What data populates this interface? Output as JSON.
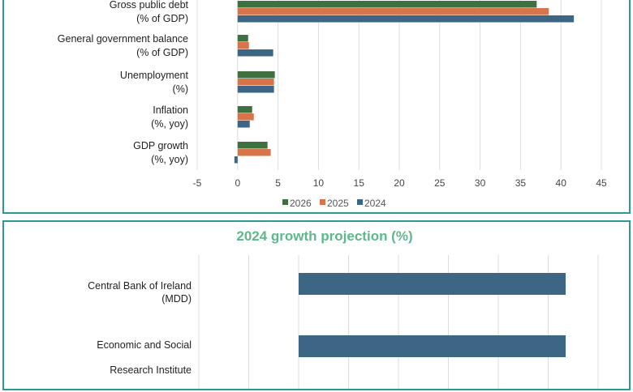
{
  "chart_data": [
    {
      "type": "bar",
      "orientation": "horizontal",
      "categories": [
        [
          "Gross public debt",
          "(% of GDP)"
        ],
        [
          "General government balance",
          "(% of GDP)"
        ],
        [
          "Unemployment",
          "(%)"
        ],
        [
          "Inflation",
          "(%, yoy)"
        ],
        [
          "GDP growth",
          "(%, yoy)"
        ]
      ],
      "series": [
        {
          "name": "2026",
          "color": "#3f7040",
          "values": [
            37.0,
            1.3,
            4.6,
            1.8,
            3.7
          ]
        },
        {
          "name": "2025",
          "color": "#d8744a",
          "values": [
            38.5,
            1.4,
            4.5,
            2.0,
            4.1
          ]
        },
        {
          "name": "2024",
          "color": "#3d6584",
          "values": [
            41.6,
            4.4,
            4.5,
            1.5,
            -0.4
          ]
        }
      ],
      "xlim": [
        -5,
        45
      ],
      "xticks": [
        "-5",
        "0",
        "5",
        "10",
        "15",
        "20",
        "25",
        "30",
        "35",
        "40",
        "45"
      ],
      "grid": true,
      "legend_placement": "bottom"
    },
    {
      "type": "bar",
      "orientation": "horizontal",
      "title": "2024 growth projection (%)",
      "categories": [
        [
          "Central Bank of Ireland",
          "(MDD)"
        ],
        [
          "Economic and Social",
          "Research Institute"
        ]
      ],
      "series": [
        {
          "color": "#3d6584",
          "values": [
            5.35,
            5.35
          ]
        }
      ],
      "xlim": [
        -2,
        6
      ],
      "grid": true
    }
  ]
}
